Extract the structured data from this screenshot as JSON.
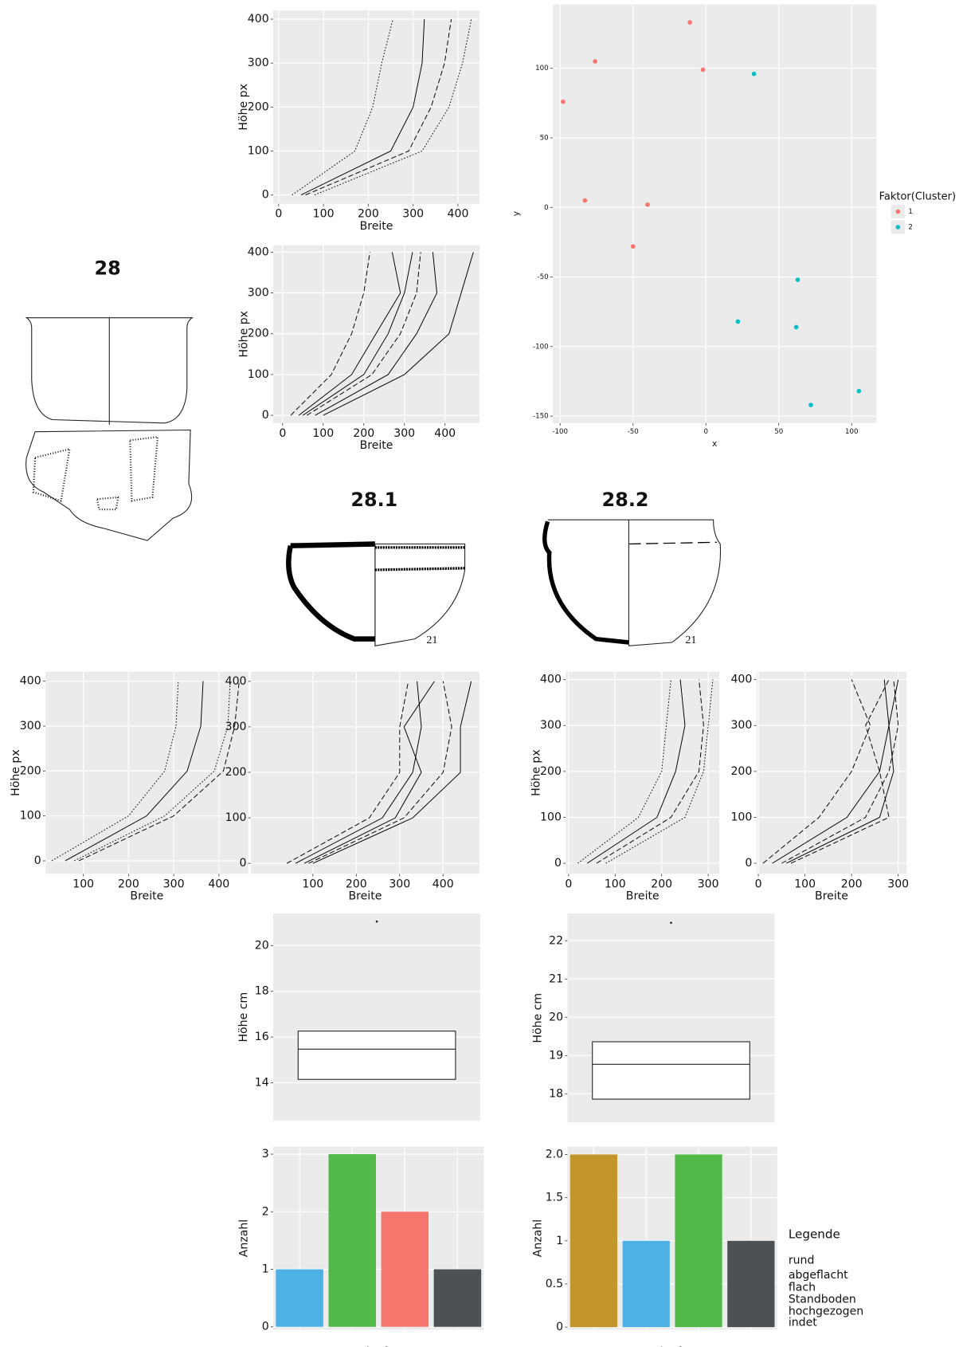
{
  "drawings": {
    "labels": [
      "28",
      "28.1",
      "28.2"
    ],
    "label_colors": [
      "#111111",
      "#f07b6e",
      "#4aa9e0"
    ],
    "numbers": [
      "21",
      "21"
    ]
  },
  "bodenform_legend": {
    "title": "Legende",
    "items": [
      {
        "label": "rund",
        "color": "#f4766d"
      },
      {
        "label": "abgeflacht",
        "color": "#c2962a"
      },
      {
        "label": "flach",
        "color": "#4eb1e5"
      },
      {
        "label": "Standboden",
        "color": "#3cbf9c"
      },
      {
        "label": "hochgezogen",
        "color": "#52b848"
      },
      {
        "label": "indet",
        "color": "#555555"
      }
    ]
  },
  "chart_data": [
    {
      "type": "line",
      "xlabel": "Breite",
      "ylabel": "Höhe px",
      "color": "#000000",
      "grid": true,
      "xlim": [
        -12,
        448
      ],
      "ylim": [
        -20,
        420
      ],
      "xticks": [
        0,
        100,
        200,
        300,
        400
      ],
      "yticks": [
        0,
        100,
        200,
        300,
        400
      ],
      "series": [
        {
          "linestyle": "dotted",
          "x": [
            30,
            170,
            210,
            230,
            255
          ],
          "values": [
            0,
            100,
            200,
            300,
            400
          ]
        },
        {
          "linestyle": "solid",
          "x": [
            50,
            250,
            300,
            320,
            325
          ],
          "values": [
            0,
            100,
            200,
            300,
            400
          ]
        },
        {
          "linestyle": "dashed",
          "x": [
            60,
            290,
            340,
            370,
            385
          ],
          "values": [
            0,
            100,
            200,
            300,
            400
          ]
        },
        {
          "linestyle": "dotted",
          "x": [
            80,
            320,
            380,
            410,
            430
          ],
          "values": [
            0,
            100,
            200,
            300,
            400
          ]
        }
      ]
    },
    {
      "type": "line",
      "xlabel": "Breite",
      "ylabel": "Höhe px",
      "color": "#000000",
      "grid": true,
      "xlim": [
        -23,
        485
      ],
      "ylim": [
        -19,
        417
      ],
      "xticks": [
        0,
        100,
        200,
        300,
        400
      ],
      "yticks": [
        0,
        100,
        200,
        300,
        400
      ],
      "series": [
        {
          "linestyle": "dashed",
          "x": [
            20,
            120,
            170,
            200,
            215
          ],
          "values": [
            0,
            100,
            200,
            300,
            400
          ]
        },
        {
          "linestyle": "solid",
          "x": [
            40,
            170,
            230,
            290,
            270
          ],
          "values": [
            0,
            100,
            200,
            300,
            400
          ]
        },
        {
          "linestyle": "solid",
          "x": [
            50,
            200,
            260,
            300,
            320
          ],
          "values": [
            0,
            100,
            200,
            300,
            400
          ]
        },
        {
          "linestyle": "dashed",
          "x": [
            60,
            220,
            290,
            330,
            340
          ],
          "values": [
            0,
            100,
            200,
            300,
            400
          ]
        },
        {
          "linestyle": "solid",
          "x": [
            80,
            260,
            330,
            380,
            370
          ],
          "values": [
            0,
            100,
            200,
            300,
            400
          ]
        },
        {
          "linestyle": "solid",
          "x": [
            100,
            300,
            410,
            440,
            470
          ],
          "values": [
            0,
            100,
            200,
            300,
            400
          ]
        }
      ]
    },
    {
      "type": "scatter",
      "xlabel": "x",
      "ylabel": "y",
      "legend_title": "Faktor(Cluster)",
      "grid": true,
      "xlim": [
        -105,
        117
      ],
      "ylim": [
        -155,
        146
      ],
      "xticks": [
        -100,
        -50,
        0,
        50,
        100
      ],
      "yticks": [
        -150,
        -100,
        -50,
        0,
        50,
        100
      ],
      "series": [
        {
          "name": "1",
          "color": "#f8766d",
          "x": [
            -98,
            -76,
            -11,
            -2,
            -83,
            -40,
            -50
          ],
          "values": [
            76,
            105,
            133,
            99,
            5,
            2,
            -28
          ]
        },
        {
          "name": "2",
          "color": "#00bfc4",
          "x": [
            33,
            63,
            22,
            62,
            72,
            105
          ],
          "values": [
            96,
            -52,
            -82,
            -86,
            -142,
            -132
          ]
        }
      ]
    },
    {
      "type": "line",
      "xlabel": "Breite",
      "ylabel": "Höhe px",
      "color": "#000000",
      "grid": true,
      "xlim": [
        16,
        465
      ],
      "ylim": [
        -29,
        421
      ],
      "xticks": [
        100,
        200,
        300,
        400
      ],
      "yticks": [
        0,
        100,
        200,
        300,
        400
      ],
      "series": [
        {
          "linestyle": "dotted",
          "x": [
            30,
            200,
            280,
            305,
            310
          ],
          "values": [
            0,
            100,
            200,
            300,
            400
          ]
        },
        {
          "linestyle": "solid",
          "x": [
            60,
            240,
            330,
            360,
            365
          ],
          "values": [
            0,
            100,
            200,
            300,
            400
          ]
        },
        {
          "linestyle": "dotted",
          "x": [
            80,
            280,
            390,
            420,
            425
          ],
          "values": [
            0,
            100,
            200,
            300,
            400
          ]
        },
        {
          "linestyle": "dashed",
          "x": [
            90,
            300,
            410,
            435,
            445
          ],
          "values": [
            0,
            100,
            200,
            300,
            400
          ]
        }
      ]
    },
    {
      "type": "line",
      "xlabel": "Breite",
      "color": "#000000",
      "grid": true,
      "xlim": [
        -43,
        484
      ],
      "ylim": [
        -23,
        421
      ],
      "xticks": [
        100,
        200,
        300,
        400
      ],
      "yticks": [
        0,
        100,
        200,
        300,
        400
      ],
      "series": [
        {
          "linestyle": "dashed",
          "x": [
            40,
            230,
            300,
            300,
            320
          ],
          "values": [
            0,
            100,
            200,
            300,
            400
          ]
        },
        {
          "linestyle": "solid",
          "x": [
            60,
            260,
            330,
            350,
            340
          ],
          "values": [
            0,
            100,
            200,
            300,
            400
          ]
        },
        {
          "linestyle": "solid",
          "x": [
            80,
            290,
            350,
            310,
            380
          ],
          "values": [
            0,
            100,
            200,
            300,
            400
          ]
        },
        {
          "linestyle": "dashed",
          "x": [
            90,
            310,
            400,
            420,
            400
          ],
          "values": [
            0,
            100,
            200,
            300,
            400
          ]
        },
        {
          "linestyle": "solid",
          "x": [
            100,
            330,
            440,
            440,
            465
          ],
          "values": [
            0,
            100,
            200,
            300,
            400
          ]
        }
      ]
    },
    {
      "type": "line",
      "xlabel": "Breite",
      "ylabel": "Höhe px",
      "color": "#000000",
      "grid": true,
      "xlim": [
        -6,
        324
      ],
      "ylim": [
        -23,
        417
      ],
      "xticks": [
        0,
        100,
        200,
        300
      ],
      "yticks": [
        0,
        100,
        200,
        300,
        400
      ],
      "series": [
        {
          "linestyle": "dotted",
          "x": [
            20,
            150,
            200,
            210,
            220
          ],
          "values": [
            0,
            100,
            200,
            300,
            400
          ]
        },
        {
          "linestyle": "solid",
          "x": [
            40,
            190,
            230,
            250,
            240
          ],
          "values": [
            0,
            100,
            200,
            300,
            400
          ]
        },
        {
          "linestyle": "dashed",
          "x": [
            60,
            220,
            280,
            290,
            280
          ],
          "values": [
            0,
            100,
            200,
            300,
            400
          ]
        },
        {
          "linestyle": "dotted",
          "x": [
            80,
            250,
            290,
            300,
            310
          ],
          "values": [
            0,
            100,
            200,
            300,
            400
          ]
        }
      ]
    },
    {
      "type": "line",
      "xlabel": "Breite",
      "color": "#000000",
      "grid": true,
      "xlim": [
        -4,
        318
      ],
      "ylim": [
        -23,
        417
      ],
      "xticks": [
        0,
        100,
        200,
        300
      ],
      "yticks": [
        0,
        100,
        200,
        300,
        400
      ],
      "series": [
        {
          "linestyle": "dashed",
          "x": [
            10,
            130,
            200,
            240,
            200
          ],
          "values": [
            0,
            100,
            200,
            300,
            400
          ]
        },
        {
          "linestyle": "solid",
          "x": [
            30,
            190,
            260,
            280,
            270
          ],
          "values": [
            0,
            100,
            200,
            300,
            400
          ]
        },
        {
          "linestyle": "dashed",
          "x": [
            50,
            230,
            280,
            300,
            290
          ],
          "values": [
            0,
            100,
            200,
            300,
            400
          ]
        },
        {
          "linestyle": "solid",
          "x": [
            60,
            260,
            290,
            280,
            300
          ],
          "values": [
            0,
            100,
            200,
            300,
            400
          ]
        },
        {
          "linestyle": "dashed",
          "x": [
            70,
            280,
            260,
            230,
            280
          ],
          "values": [
            0,
            100,
            200,
            300,
            400
          ]
        }
      ]
    },
    {
      "type": "box",
      "ylabel": "Höhe cm",
      "grid": true,
      "ylim": [
        12.34,
        21.4
      ],
      "yticks": [
        14,
        16,
        18,
        20
      ],
      "q1": 14.15,
      "median": 15.47,
      "q3": 16.26,
      "outliers": [
        21.05
      ]
    },
    {
      "type": "box",
      "ylabel": "Höhe cm",
      "grid": true,
      "ylim": [
        17.25,
        22.71
      ],
      "yticks": [
        18,
        19,
        20,
        21,
        22
      ],
      "q1": 17.86,
      "median": 18.77,
      "q3": 19.36,
      "outliers": [
        22.47
      ]
    },
    {
      "type": "bar",
      "xlabel": "Bodenform",
      "ylabel": "Anzahl",
      "grid": true,
      "ylim": [
        -0.05,
        3.13
      ],
      "yticks": [
        0,
        1,
        2,
        3
      ],
      "categories": [
        null,
        null,
        null,
        null
      ],
      "values": [
        1,
        3,
        2,
        1
      ],
      "colors": [
        "#4eb1e5",
        "#52b848",
        "#f4766d",
        "#4d5154"
      ]
    },
    {
      "type": "bar",
      "xlabel": "Bodenform",
      "ylabel": "Anzahl",
      "grid": true,
      "ylim": [
        -0.03,
        2.09
      ],
      "yticks": [
        0,
        0.5,
        1,
        1.5,
        {
          "value": 2,
          "label": "2.0"
        }
      ],
      "categories": [
        null,
        null,
        null,
        null
      ],
      "values": [
        2,
        1,
        2,
        1
      ],
      "colors": [
        "#c2962a",
        "#4eb1e5",
        "#52b848",
        "#4d5154"
      ]
    }
  ]
}
